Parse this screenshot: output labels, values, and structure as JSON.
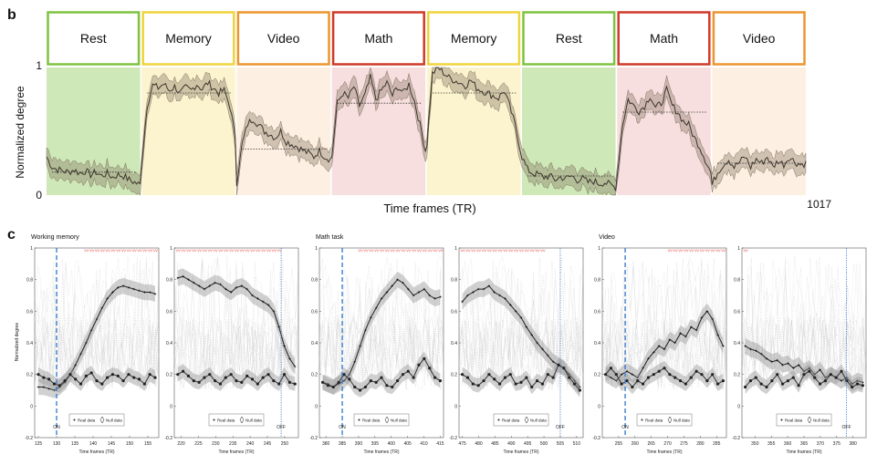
{
  "panel_b": {
    "letter": "b",
    "tasks": [
      {
        "label": "Rest",
        "color": "#7fc241",
        "bg": "#cfe8b8"
      },
      {
        "label": "Memory",
        "color": "#f0d43c",
        "bg": "#fbf4cf"
      },
      {
        "label": "Video",
        "color": "#ec9530",
        "bg": "#fdf0e2"
      },
      {
        "label": "Math",
        "color": "#cf3a2a",
        "bg": "#f8dfdf"
      },
      {
        "label": "Memory",
        "color": "#f0d43c",
        "bg": "#fbf4cf"
      },
      {
        "label": "Rest",
        "color": "#7fc241",
        "bg": "#cfe8b8"
      },
      {
        "label": "Math",
        "color": "#cf3a2a",
        "bg": "#f8dfdf"
      },
      {
        "label": "Video",
        "color": "#ec9530",
        "bg": "#fdf0e2"
      }
    ],
    "ylabel": "Normalized degree",
    "xlabel": "Time frames (TR)",
    "y_top_label": "1",
    "y_bottom_label": "0",
    "x_end_label": "1017"
  },
  "panel_c": {
    "letter": "c",
    "groups": [
      {
        "title": "Working memory",
        "on_label": "ON",
        "off_label": "OFF"
      },
      {
        "title": "Math task",
        "on_label": "ON",
        "off_label": "OFF"
      },
      {
        "title": "Video",
        "on_label": "ON",
        "off_label": "OFF"
      }
    ],
    "ylabel": "Normalized degree",
    "xlabel": "Time frames (TR)",
    "legend_real": "Real data",
    "legend_null": "Null data"
  },
  "chart_data": [
    {
      "type": "line",
      "title": "",
      "xlabel": "Time frames (TR)",
      "ylabel": "Normalized degree",
      "xlim": [
        0,
        1017
      ],
      "ylim": [
        0,
        1
      ],
      "blocks": [
        "Rest",
        "Memory",
        "Video",
        "Math",
        "Memory",
        "Rest",
        "Math",
        "Video"
      ],
      "block_means": [
        0.18,
        0.8,
        0.36,
        0.72,
        0.8,
        0.15,
        0.65,
        0.25
      ],
      "series": [
        {
          "values_per_block": [
            [
              0.3,
              0.22,
              0.2,
              0.19,
              0.18,
              0.2,
              0.17,
              0.19,
              0.16,
              0.18,
              0.15,
              0.17,
              0.14,
              0.16,
              0.15,
              0.12,
              0.1,
              0.08
            ],
            [
              0.25,
              0.7,
              0.86,
              0.84,
              0.87,
              0.82,
              0.85,
              0.8,
              0.84,
              0.82,
              0.87,
              0.83,
              0.88,
              0.84,
              0.8,
              0.82,
              0.7,
              0.45
            ],
            [
              0.1,
              0.4,
              0.56,
              0.6,
              0.55,
              0.5,
              0.48,
              0.45,
              0.5,
              0.42,
              0.4,
              0.38,
              0.35,
              0.33,
              0.3,
              0.35,
              0.3,
              0.28
            ],
            [
              0.3,
              0.72,
              0.8,
              0.76,
              0.85,
              0.7,
              0.78,
              0.92,
              0.75,
              0.82,
              0.88,
              0.78,
              0.85,
              0.8,
              0.87,
              0.74,
              0.55,
              0.35
            ],
            [
              0.4,
              0.95,
              1.0,
              0.96,
              0.92,
              0.9,
              0.88,
              0.86,
              0.9,
              0.84,
              0.82,
              0.8,
              0.78,
              0.76,
              0.82,
              0.7,
              0.55,
              0.35
            ],
            [
              0.3,
              0.2,
              0.17,
              0.16,
              0.14,
              0.15,
              0.12,
              0.14,
              0.13,
              0.15,
              0.12,
              0.13,
              0.1,
              0.11,
              0.09,
              0.1,
              0.08,
              0.06
            ],
            [
              0.15,
              0.55,
              0.75,
              0.7,
              0.66,
              0.7,
              0.78,
              0.68,
              0.72,
              0.82,
              0.7,
              0.65,
              0.58,
              0.55,
              0.45,
              0.38,
              0.28,
              0.18
            ],
            [
              0.08,
              0.18,
              0.24,
              0.28,
              0.22,
              0.26,
              0.3,
              0.22,
              0.28,
              0.25,
              0.3,
              0.22,
              0.27,
              0.24,
              0.3,
              0.26,
              0.24,
              0.25
            ]
          ]
        }
      ]
    },
    {
      "type": "line",
      "title": "Working memory",
      "subpanels": [
        {
          "xlim": [
            124,
            158
          ],
          "xticks": [
            125,
            130,
            135,
            140,
            145,
            150,
            155
          ],
          "event_x": 130,
          "event": "ON",
          "real": [
            0.12,
            0.12,
            0.11,
            0.1,
            0.12,
            0.15,
            0.2,
            0.26,
            0.33,
            0.4,
            0.48,
            0.55,
            0.62,
            0.68,
            0.72,
            0.75,
            0.76,
            0.75,
            0.74,
            0.73,
            0.72,
            0.72,
            0.71
          ],
          "null": [
            0.2,
            0.18,
            0.17,
            0.14,
            0.13,
            0.16,
            0.2,
            0.17,
            0.14,
            0.19,
            0.21,
            0.16,
            0.14,
            0.18,
            0.2,
            0.19,
            0.16,
            0.2,
            0.18,
            0.17,
            0.14,
            0.2,
            0.18
          ]
        },
        {
          "xlim": [
            218,
            254
          ],
          "xticks": [
            220,
            225,
            230,
            235,
            240,
            245,
            250
          ],
          "event_x": 249,
          "event": "OFF",
          "real": [
            0.81,
            0.82,
            0.8,
            0.78,
            0.76,
            0.74,
            0.76,
            0.78,
            0.77,
            0.74,
            0.72,
            0.75,
            0.76,
            0.74,
            0.7,
            0.68,
            0.66,
            0.64,
            0.6,
            0.5,
            0.38,
            0.3,
            0.25
          ],
          "null": [
            0.2,
            0.22,
            0.19,
            0.16,
            0.15,
            0.18,
            0.2,
            0.16,
            0.14,
            0.18,
            0.2,
            0.16,
            0.15,
            0.19,
            0.17,
            0.14,
            0.18,
            0.2,
            0.16,
            0.14,
            0.2,
            0.15,
            0.14
          ]
        }
      ]
    },
    {
      "type": "line",
      "title": "Math task",
      "subpanels": [
        {
          "xlim": [
            378,
            416
          ],
          "xticks": [
            380,
            385,
            390,
            395,
            400,
            405,
            410,
            415
          ],
          "event_x": 385,
          "event": "ON",
          "real": [
            0.15,
            0.14,
            0.12,
            0.14,
            0.16,
            0.2,
            0.28,
            0.38,
            0.48,
            0.56,
            0.62,
            0.68,
            0.72,
            0.76,
            0.8,
            0.78,
            0.74,
            0.7,
            0.72,
            0.74,
            0.7,
            0.68,
            0.69
          ],
          "null": [
            0.15,
            0.13,
            0.12,
            0.15,
            0.2,
            0.17,
            0.12,
            0.1,
            0.12,
            0.16,
            0.15,
            0.18,
            0.13,
            0.12,
            0.16,
            0.2,
            0.22,
            0.18,
            0.26,
            0.3,
            0.24,
            0.18,
            0.16
          ]
        },
        {
          "xlim": [
            474,
            512
          ],
          "xticks": [
            475,
            480,
            485,
            490,
            495,
            500,
            505,
            510
          ],
          "event_x": 505,
          "event": "OFF",
          "real": [
            0.66,
            0.7,
            0.72,
            0.74,
            0.74,
            0.76,
            0.72,
            0.7,
            0.68,
            0.64,
            0.6,
            0.56,
            0.5,
            0.45,
            0.4,
            0.36,
            0.32,
            0.28,
            0.26,
            0.24,
            0.2,
            0.16,
            0.12
          ],
          "null": [
            0.2,
            0.18,
            0.14,
            0.13,
            0.16,
            0.2,
            0.17,
            0.14,
            0.18,
            0.2,
            0.14,
            0.15,
            0.18,
            0.12,
            0.16,
            0.14,
            0.2,
            0.18,
            0.26,
            0.24,
            0.18,
            0.14,
            0.1
          ]
        }
      ]
    },
    {
      "type": "line",
      "title": "Video",
      "subpanels": [
        {
          "xlim": [
            250,
            288
          ],
          "xticks": [
            255,
            260,
            265,
            270,
            275,
            280,
            285
          ],
          "event_x": 257,
          "event": "ON",
          "real": [
            0.2,
            0.18,
            0.16,
            0.2,
            0.22,
            0.2,
            0.18,
            0.24,
            0.3,
            0.34,
            0.38,
            0.36,
            0.42,
            0.4,
            0.46,
            0.44,
            0.5,
            0.48,
            0.56,
            0.6,
            0.55,
            0.45,
            0.38
          ],
          "null": [
            0.2,
            0.24,
            0.2,
            0.14,
            0.16,
            0.12,
            0.16,
            0.14,
            0.18,
            0.2,
            0.22,
            0.24,
            0.2,
            0.18,
            0.16,
            0.14,
            0.18,
            0.22,
            0.2,
            0.16,
            0.2,
            0.14,
            0.16
          ]
        },
        {
          "xlim": [
            346,
            384
          ],
          "xticks": [
            350,
            355,
            360,
            365,
            370,
            375,
            380
          ],
          "event_x": 378,
          "event": "OFF",
          "real": [
            0.38,
            0.36,
            0.35,
            0.33,
            0.3,
            0.28,
            0.29,
            0.26,
            0.27,
            0.24,
            0.26,
            0.22,
            0.24,
            0.2,
            0.23,
            0.18,
            0.2,
            0.18,
            0.16,
            0.18,
            0.14,
            0.16,
            0.15
          ],
          "null": [
            0.12,
            0.16,
            0.18,
            0.14,
            0.12,
            0.16,
            0.2,
            0.14,
            0.16,
            0.18,
            0.13,
            0.2,
            0.22,
            0.18,
            0.14,
            0.16,
            0.2,
            0.18,
            0.22,
            0.16,
            0.12,
            0.14,
            0.13
          ]
        }
      ]
    }
  ]
}
